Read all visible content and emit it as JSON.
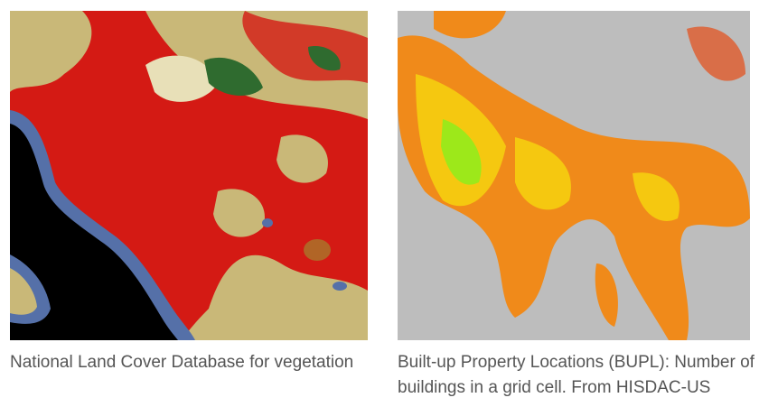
{
  "figures": [
    {
      "caption": "National Land Cover Database for vegetation"
    },
    {
      "caption": "Built-up Property Locations (BUPL): Number of buildings in a grid cell. From HISDAC-US"
    }
  ]
}
